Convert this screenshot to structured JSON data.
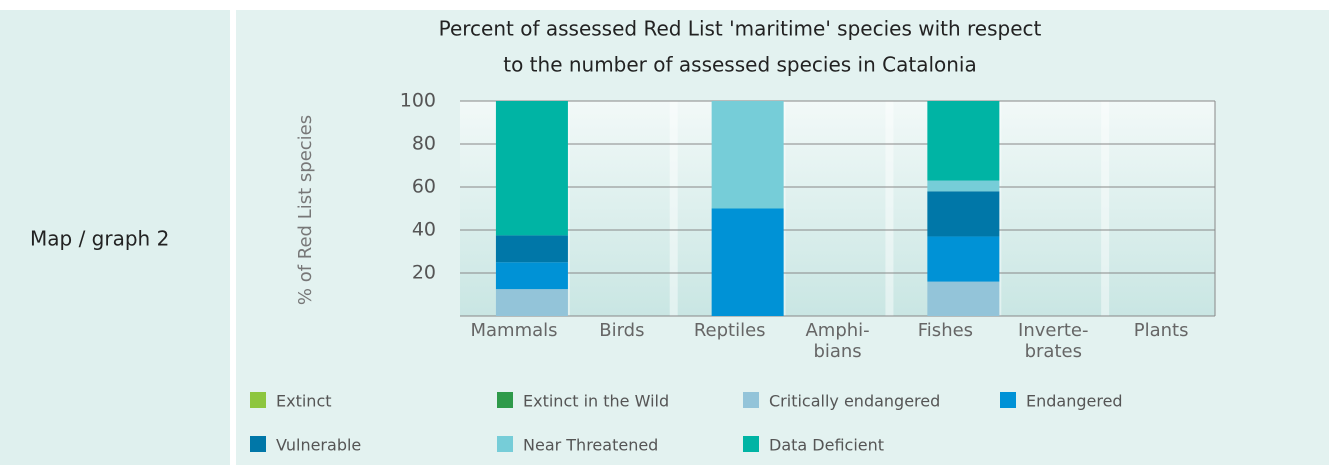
{
  "label": "Map / graph 2",
  "chart_data": {
    "type": "stacked-bar",
    "title": [
      "Percent of assessed Red List 'maritime' species with respect",
      "to the number of assessed species in Catalonia"
    ],
    "y_label": "% of Red List species",
    "categories": [
      "Mammals",
      "Birds",
      "Reptiles",
      "Amphi-\nbians",
      "Fishes",
      "Inverte-\nbrates",
      "Plants"
    ],
    "series": [
      {
        "name": "Extinct",
        "color": "#8dc63f",
        "values": [
          0,
          0,
          0,
          0,
          0,
          0,
          0
        ]
      },
      {
        "name": "Extinct in the Wild",
        "color": "#2e9a4a",
        "values": [
          0,
          0,
          0,
          0,
          0,
          0,
          0
        ]
      },
      {
        "name": "Critically endangered",
        "color": "#93c4d9",
        "values": [
          12.5,
          0,
          0,
          0,
          16,
          0,
          0
        ]
      },
      {
        "name": "Endangered",
        "color": "#0092d6",
        "values": [
          12.5,
          0,
          50,
          0,
          21,
          0,
          0
        ]
      },
      {
        "name": "Vulnerable",
        "color": "#0077a8",
        "values": [
          12.5,
          0,
          0,
          0,
          21,
          0,
          0
        ]
      },
      {
        "name": "Near Threatened",
        "color": "#76cdd8",
        "values": [
          0,
          0,
          50,
          0,
          5,
          0,
          0
        ]
      },
      {
        "name": "Data Deficient",
        "color": "#00b4a4",
        "values": [
          62.5,
          0,
          0,
          0,
          37,
          0,
          0
        ]
      }
    ],
    "ylim": [
      0,
      100
    ],
    "yticks": [
      20,
      40,
      60,
      80,
      100
    ],
    "grid": true
  }
}
